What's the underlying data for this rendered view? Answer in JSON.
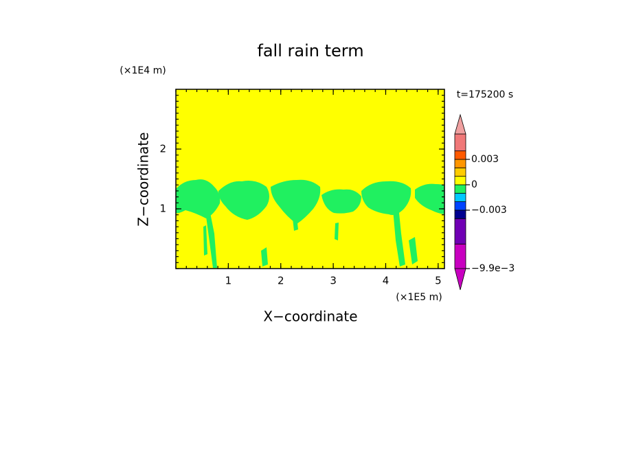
{
  "chart_data": {
    "type": "contour",
    "title": "fall rain term",
    "x_label": "X-coordinate",
    "y_label": "Z-coordinate",
    "x_unit": "(×1E5 m)",
    "y_unit": "(×1E4 m)",
    "annotation": "t=175200 s",
    "xlim": [
      0,
      5.12
    ],
    "ylim": [
      0,
      3
    ],
    "xticks": [
      1,
      2,
      3,
      4,
      5
    ],
    "yticks": [
      1,
      2
    ],
    "colorbar": {
      "levels": [
        -0.0099,
        -0.007,
        -0.004,
        -0.003,
        -0.002,
        -0.001,
        0,
        0.001,
        0.002,
        0.003,
        0.004,
        0.006
      ],
      "colors": [
        "#c800c0",
        "#7000b4",
        "#000090",
        "#0044ff",
        "#00c8ff",
        "#20f060",
        "#ffff00",
        "#ffcc00",
        "#ff9600",
        "#ff5a00",
        "#f07878"
      ],
      "under_color": "#c800c0",
      "over_color": "#f0a0a0",
      "ticks": [
        {
          "value": -0.0099,
          "label": "-9.9e-3"
        },
        -0.003,
        0,
        0.003
      ]
    }
  }
}
